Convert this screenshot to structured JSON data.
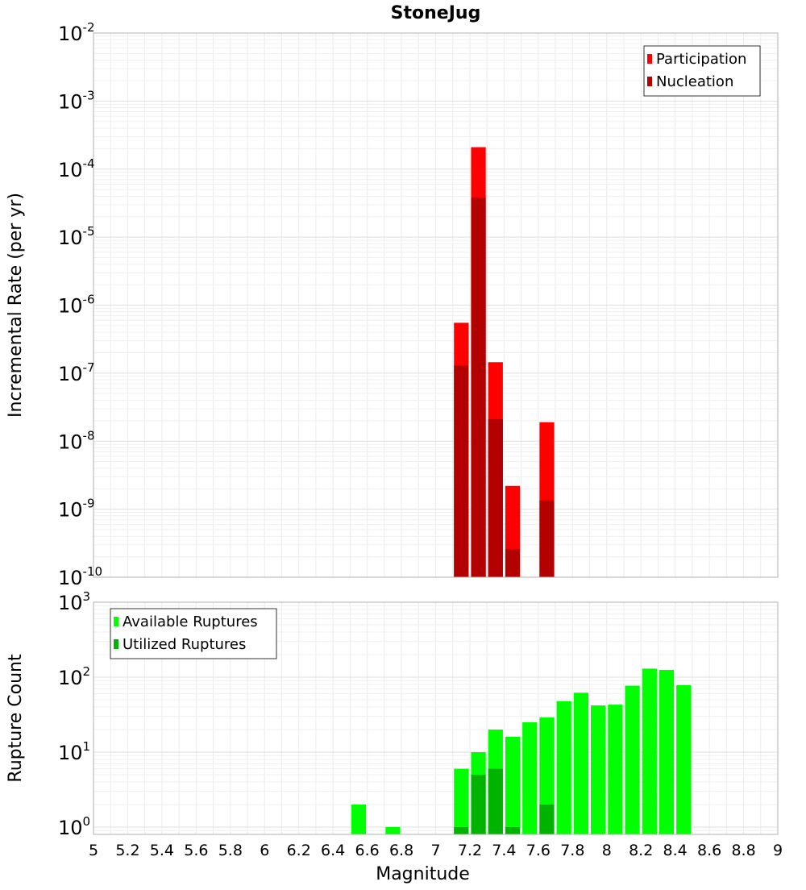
{
  "chart_data": [
    {
      "type": "bar",
      "title": "StoneJug",
      "xlabel": "Magnitude",
      "ylabel": "Incremental Rate (per yr)",
      "yscale": "log",
      "ylim": [
        1e-10,
        0.01
      ],
      "xlim": [
        5,
        9
      ],
      "bin_width": 0.1,
      "grid": true,
      "legend_position": "top-right",
      "x_ticks": [
        "5",
        "5.2",
        "5.4",
        "5.6",
        "5.8",
        "6",
        "6.2",
        "6.4",
        "6.6",
        "6.8",
        "7",
        "7.2",
        "7.4",
        "7.6",
        "7.8",
        "8",
        "8.2",
        "8.4",
        "8.6",
        "8.8",
        "9"
      ],
      "y_ticks": [
        {
          "base": "10",
          "exp": "-2"
        },
        {
          "base": "10",
          "exp": "-3"
        },
        {
          "base": "10",
          "exp": "-4"
        },
        {
          "base": "10",
          "exp": "-5"
        },
        {
          "base": "10",
          "exp": "-6"
        },
        {
          "base": "10",
          "exp": "-7"
        },
        {
          "base": "10",
          "exp": "-8"
        },
        {
          "base": "10",
          "exp": "-9"
        },
        {
          "base": "10",
          "exp": "-10"
        }
      ],
      "series": [
        {
          "name": "Participation",
          "color": "#ff0000",
          "x": [
            7.15,
            7.25,
            7.35,
            7.45,
            7.65
          ],
          "values": [
            5.5e-07,
            0.00021,
            1.45e-07,
            2.2e-09,
            1.9e-08
          ]
        },
        {
          "name": "Nucleation",
          "color": "#b30000",
          "x": [
            7.15,
            7.25,
            7.35,
            7.45,
            7.65
          ],
          "values": [
            1.3e-07,
            3.8e-05,
            2.1e-08,
            2.6e-10,
            1.35e-09
          ]
        }
      ]
    },
    {
      "type": "bar",
      "title": "",
      "xlabel": "Magnitude",
      "ylabel": "Rupture Count",
      "yscale": "log",
      "ylim": [
        0.8,
        1000
      ],
      "xlim": [
        5,
        9
      ],
      "bin_width": 0.1,
      "grid": true,
      "legend_position": "top-left",
      "x_ticks": [
        "5",
        "5.2",
        "5.4",
        "5.6",
        "5.8",
        "6",
        "6.2",
        "6.4",
        "6.6",
        "6.8",
        "7",
        "7.2",
        "7.4",
        "7.6",
        "7.8",
        "8",
        "8.2",
        "8.4",
        "8.6",
        "8.8",
        "9"
      ],
      "y_ticks": [
        {
          "base": "10",
          "exp": "3"
        },
        {
          "base": "10",
          "exp": "2"
        },
        {
          "base": "10",
          "exp": "1"
        },
        {
          "base": "10",
          "exp": "0"
        }
      ],
      "series": [
        {
          "name": "Available Ruptures",
          "color": "#00ff00",
          "x": [
            6.55,
            6.75,
            7.15,
            7.25,
            7.35,
            7.45,
            7.55,
            7.65,
            7.75,
            7.85,
            7.95,
            8.05,
            8.15,
            8.25,
            8.35,
            8.45
          ],
          "values": [
            2,
            1,
            6,
            10,
            20,
            16,
            25,
            29,
            48,
            62,
            42,
            43,
            77,
            130,
            125,
            78
          ]
        },
        {
          "name": "Utilized Ruptures",
          "color": "#00b300",
          "x": [
            7.15,
            7.25,
            7.35,
            7.45,
            7.65
          ],
          "values": [
            1,
            5,
            6,
            1,
            2
          ]
        }
      ]
    }
  ]
}
